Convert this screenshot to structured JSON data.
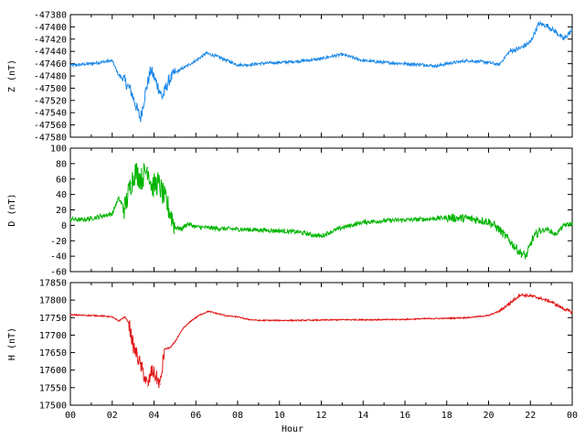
{
  "chart_data": [
    {
      "type": "line",
      "ylabel": "Z (nT)",
      "ylim": [
        -47580,
        -47380
      ],
      "yticks": [
        -47380,
        -47400,
        -47420,
        -47440,
        -47460,
        -47480,
        -47500,
        -47520,
        -47540,
        -47560,
        -47580
      ],
      "xlim": [
        0,
        24
      ],
      "color": "#1a87e8",
      "x": [
        0,
        1,
        2,
        2.3,
        2.6,
        2.9,
        3.1,
        3.35,
        3.6,
        3.85,
        4.1,
        4.4,
        4.7,
        5.0,
        5.5,
        6.0,
        6.5,
        7.0,
        7.5,
        8.0,
        8.5,
        9,
        10,
        11,
        12,
        12.5,
        13,
        13.5,
        14,
        15,
        16,
        17,
        17.5,
        18,
        19,
        20,
        20.5,
        21.0,
        21.5,
        22.0,
        22.4,
        22.8,
        23.2,
        23.6,
        24
      ],
      "values": [
        -47463,
        -47460,
        -47455,
        -47478,
        -47488,
        -47505,
        -47525,
        -47550,
        -47505,
        -47470,
        -47490,
        -47515,
        -47488,
        -47475,
        -47465,
        -47455,
        -47443,
        -47448,
        -47455,
        -47462,
        -47462,
        -47460,
        -47458,
        -47456,
        -47452,
        -47448,
        -47445,
        -47450,
        -47455,
        -47458,
        -47460,
        -47462,
        -47464,
        -47460,
        -47455,
        -47458,
        -47462,
        -47440,
        -47435,
        -47425,
        -47395,
        -47398,
        -47408,
        -47420,
        -47405
      ]
    },
    {
      "type": "line",
      "ylabel": "D (nT)",
      "ylim": [
        -60,
        100
      ],
      "yticks": [
        100,
        80,
        60,
        40,
        20,
        0,
        -20,
        -40,
        -60
      ],
      "xlim": [
        0,
        24
      ],
      "color": "#00b400",
      "x": [
        0,
        0.5,
        1,
        1.5,
        2,
        2.3,
        2.6,
        2.9,
        3.1,
        3.4,
        3.7,
        3.9,
        4.2,
        4.5,
        4.8,
        5.0,
        5.3,
        5.6,
        6,
        7,
        8,
        9,
        10,
        11,
        11.5,
        12,
        12.5,
        13,
        14,
        15,
        16,
        17,
        18,
        19,
        20,
        20.5,
        21,
        21.5,
        21.8,
        22.1,
        22.4,
        22.8,
        23.2,
        23.6,
        24
      ],
      "values": [
        8,
        7,
        9,
        12,
        15,
        35,
        22,
        55,
        70,
        60,
        75,
        50,
        55,
        35,
        15,
        -2,
        -5,
        2,
        -2,
        -4,
        -5,
        -6,
        -7,
        -9,
        -12,
        -14,
        -8,
        -3,
        4,
        6,
        7,
        8,
        10,
        9,
        5,
        -5,
        -20,
        -35,
        -40,
        -18,
        -8,
        -5,
        -12,
        0,
        2
      ]
    },
    {
      "type": "line",
      "ylabel": "H (nT)",
      "ylim": [
        17500,
        17850
      ],
      "yticks": [
        17850,
        17800,
        17750,
        17700,
        17650,
        17600,
        17550,
        17500
      ],
      "xlim": [
        0,
        24
      ],
      "color": "#e11414",
      "x": [
        0,
        0.5,
        1,
        1.5,
        2,
        2.3,
        2.6,
        2.8,
        3.0,
        3.2,
        3.5,
        3.7,
        3.9,
        4.1,
        4.3,
        4.5,
        4.8,
        5.1,
        5.4,
        5.8,
        6.2,
        6.6,
        7,
        7.5,
        8,
        8.5,
        9,
        10,
        11,
        12,
        13,
        14,
        15,
        16,
        17,
        18,
        19,
        20,
        20.5,
        21,
        21.5,
        22,
        22.5,
        23,
        23.5,
        24
      ],
      "values": [
        17758,
        17757,
        17756,
        17755,
        17752,
        17740,
        17752,
        17735,
        17670,
        17640,
        17590,
        17555,
        17600,
        17580,
        17560,
        17660,
        17665,
        17690,
        17720,
        17742,
        17758,
        17768,
        17762,
        17755,
        17752,
        17745,
        17742,
        17742,
        17742,
        17743,
        17744,
        17744,
        17744,
        17745,
        17747,
        17748,
        17750,
        17756,
        17768,
        17790,
        17815,
        17812,
        17805,
        17795,
        17778,
        17765
      ]
    }
  ],
  "xaxis": {
    "label": "Hour",
    "ticks": [
      "00",
      "02",
      "04",
      "06",
      "08",
      "10",
      "12",
      "14",
      "16",
      "18",
      "20",
      "22",
      "00"
    ]
  }
}
